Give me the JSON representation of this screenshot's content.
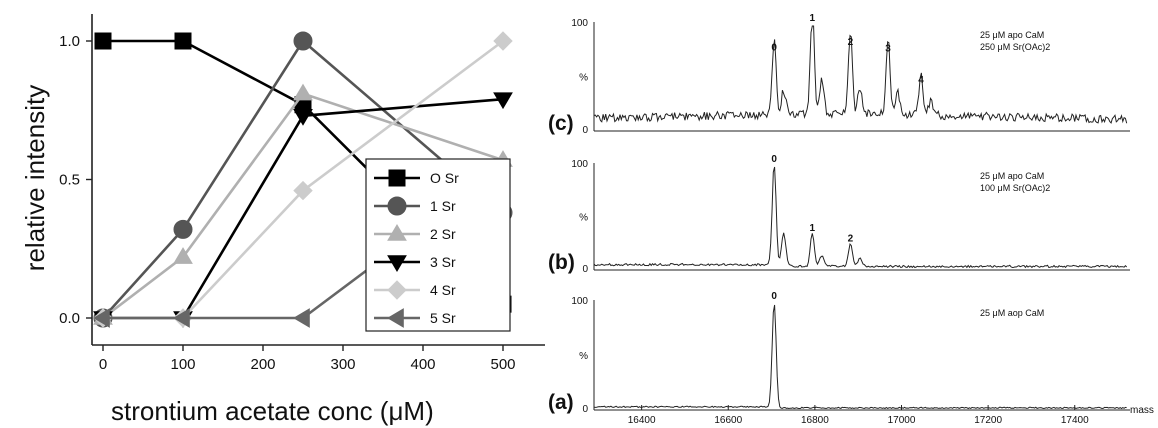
{
  "chart_data": [
    {
      "type": "line",
      "xlabel": "strontium acetate conc (μM)",
      "ylabel": "relative intensity",
      "xlim": [
        -10,
        550
      ],
      "ylim": [
        -0.08,
        1.1
      ],
      "x": [
        0,
        100,
        250,
        500
      ],
      "xticks": [
        "0",
        "100",
        "200",
        "300",
        "400",
        "500"
      ],
      "yticks": [
        "0.0",
        "0.5",
        "1.0"
      ],
      "grid": false,
      "legend_position": "center-right",
      "series": [
        {
          "name": "O Sr",
          "marker": "square",
          "color": "#000000",
          "values": [
            1.0,
            1.0,
            0.77,
            0.05
          ]
        },
        {
          "name": "1 Sr",
          "marker": "circle",
          "color": "#555555",
          "values": [
            0.0,
            0.32,
            1.0,
            0.38
          ]
        },
        {
          "name": "2 Sr",
          "marker": "triangle-up",
          "color": "#b0b0b0",
          "values": [
            0.0,
            0.22,
            0.81,
            0.57
          ]
        },
        {
          "name": "3 Sr",
          "marker": "triangle-down",
          "color": "#000000",
          "values": [
            0.0,
            0.0,
            0.73,
            0.79
          ]
        },
        {
          "name": "4 Sr",
          "marker": "diamond",
          "color": "#cccccc",
          "values": [
            0.0,
            0.0,
            0.46,
            1.0
          ]
        },
        {
          "name": "5 Sr",
          "marker": "triangle-left",
          "color": "#666666",
          "values": [
            0.0,
            0.0,
            0.0,
            0.54
          ]
        }
      ]
    },
    {
      "type": "line",
      "xlabel": "mass",
      "xlim": [
        16290,
        17530
      ],
      "xticks": [
        "16400",
        "16600",
        "16800",
        "17000",
        "17200",
        "17400"
      ],
      "panels": [
        {
          "label": "(c)",
          "annotation": [
            "25 μM apo CaM",
            "250 μM Sr(OAc)2"
          ],
          "yticks": [
            "100",
            "%",
            "0"
          ],
          "peaks": [
            {
              "label": "0",
              "mass": 16706,
              "intensity": 72
            },
            {
              "label": "1",
              "mass": 16794,
              "intensity": 100
            },
            {
              "label": "2",
              "mass": 16882,
              "intensity": 77
            },
            {
              "label": "3",
              "mass": 16969,
              "intensity": 71
            },
            {
              "label": "4",
              "mass": 17045,
              "intensity": 41
            }
          ]
        },
        {
          "label": "(b)",
          "annotation": [
            "25 μM apo CaM",
            "100 μM Sr(OAc)2"
          ],
          "yticks": [
            "100",
            "%",
            "0"
          ],
          "peaks": [
            {
              "label": "0",
              "mass": 16706,
              "intensity": 100
            },
            {
              "label": "1",
              "mass": 16794,
              "intensity": 33
            },
            {
              "label": "2",
              "mass": 16882,
              "intensity": 23
            }
          ]
        },
        {
          "label": "(a)",
          "annotation": [
            "25 μM aop CaM"
          ],
          "yticks": [
            "100",
            "%",
            "0"
          ],
          "peaks": [
            {
              "label": "0",
              "mass": 16706,
              "intensity": 100
            }
          ]
        }
      ]
    }
  ]
}
